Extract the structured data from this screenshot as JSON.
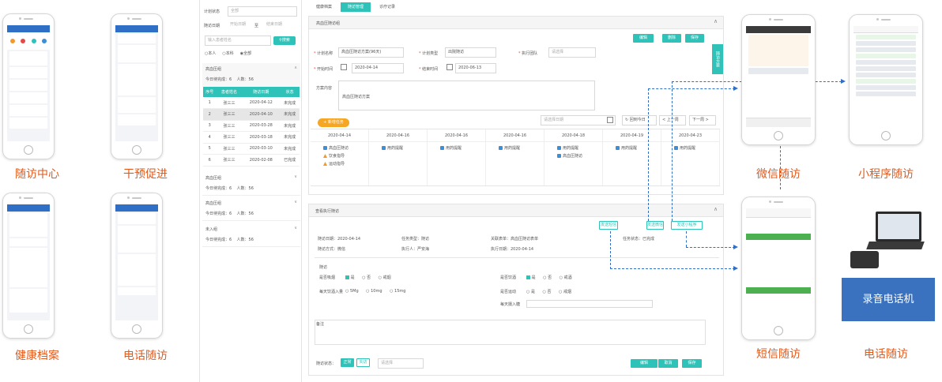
{
  "captions": {
    "followup_center": "随访中心",
    "intervention": "干预促进",
    "health_record": "健康档案",
    "phone_followup": "电话随访",
    "wechat_followup": "微信随访",
    "miniprogram_followup": "小程序随访",
    "sms_followup": "短信随访",
    "recorder_phone": "录音电话机",
    "tel_followup": "电话随访"
  },
  "filter": {
    "plan_status_label": "计划状态",
    "plan_status_value": "全部",
    "date_label": "随访日期",
    "date_start": "开始日期",
    "date_to": "至",
    "date_end": "结束日期",
    "search_placeholder": "输入患者姓名",
    "search_button": "搜索",
    "radio_self": "本人",
    "radio_dept": "本科",
    "radio_all": "全部"
  },
  "plan_groups": [
    {
      "name": "高血压组",
      "today": "今日待完成：6",
      "count": "人数：56"
    },
    {
      "name": "高血压组",
      "today": "今日待完成：6",
      "count": "人数：56"
    },
    {
      "name": "高血压组",
      "today": "今日待完成：6",
      "count": "人数：56"
    },
    {
      "name": "未入组",
      "today": "今日待完成：6",
      "count": "人数：56"
    }
  ],
  "patient_table": {
    "headers": [
      "序号",
      "患者姓名",
      "随访日期",
      "状态"
    ],
    "rows": [
      [
        "1",
        "张三三",
        "2020-04-12",
        "未完成"
      ],
      [
        "2",
        "张三三",
        "2020-04-10",
        "未完成"
      ],
      [
        "3",
        "张三三",
        "2020-03-28",
        "未完成"
      ],
      [
        "4",
        "张三三",
        "2020-03-18",
        "未完成"
      ],
      [
        "5",
        "张三三",
        "2020-03-10",
        "未完成"
      ],
      [
        "6",
        "张三三",
        "2020-02-08",
        "已完成"
      ]
    ]
  },
  "tabs": [
    "健康档案",
    "随访管理",
    "诊疗记录"
  ],
  "plan_form": {
    "title": "高血压随访组",
    "btn_edit": "编辑",
    "btn_delete": "删除",
    "btn_save": "保存",
    "side_tab": "随访方案",
    "name_label": "计划名称",
    "name_value": "高血压随访方案(96天)",
    "type_label": "计划类型",
    "type_value": "出院随访",
    "team_label": "执行团队",
    "team_value": "请选择",
    "start_label": "开始时间",
    "start_value": "2020-04-14",
    "end_label": "结束时间",
    "end_value": "2020-06-13",
    "content_label": "方案内容",
    "content_value": "高血压随访方案",
    "add_task": "+ 新增任务",
    "date_placeholder": "请选择日期",
    "back_today": "回到今日",
    "prev_week": "< 上一周",
    "next_week": "下一周 >"
  },
  "timeline": [
    {
      "date": "2020-04-14",
      "items": [
        {
          "t": "高血压随访",
          "icon": "b"
        },
        {
          "t": "饮食指导",
          "icon": "o"
        },
        {
          "t": "运动指导",
          "icon": "o"
        }
      ]
    },
    {
      "date": "2020-04-16",
      "items": [
        {
          "t": "用药提醒",
          "icon": "b"
        }
      ]
    },
    {
      "date": "2020-04-16",
      "items": [
        {
          "t": "用药提醒",
          "icon": "b"
        }
      ]
    },
    {
      "date": "2020-04-16",
      "items": [
        {
          "t": "用药提醒",
          "icon": "b"
        }
      ]
    },
    {
      "date": "2020-04-18",
      "items": [
        {
          "t": "用药提醒",
          "icon": "b"
        },
        {
          "t": "高血压随访",
          "icon": "b"
        }
      ]
    },
    {
      "date": "2020-04-19",
      "items": [
        {
          "t": "用药提醒",
          "icon": "b"
        }
      ]
    },
    {
      "date": "2020-04-23",
      "items": [
        {
          "t": "用药提醒",
          "icon": "b"
        }
      ]
    }
  ],
  "exec": {
    "title": "查看执行随访",
    "send_sms": "发送短信",
    "send_wechat": "发送微信",
    "send_mini": "发送小程序",
    "task_status": "任务状态：已完成",
    "date_label": "随访日期：2020-04-14",
    "type_label": "任务类型：随访",
    "table_label": "关联表单：高血压随访表单",
    "method_label": "随访方式：微信",
    "executor_label": "执行人：严安海",
    "exec_date": "执行日期：2020-04-14",
    "section": "随访",
    "q1": "是否吸烟",
    "q2": "是否饮酒",
    "yes": "是",
    "no": "否",
    "quit": "戒烟",
    "quit2": "戒酒",
    "q3": "每天饮酒入量",
    "opt1": "5Mg",
    "opt2": "10mg",
    "opt3": "15mg",
    "q4": "是否运动",
    "q5": "每天摄入糖",
    "remark": "备注",
    "status_label": "随访状态：",
    "normal": "正常",
    "lost": "失访",
    "select": "请选择",
    "btn_edit": "编辑",
    "btn_cancel": "取消",
    "btn_save": "保存"
  }
}
